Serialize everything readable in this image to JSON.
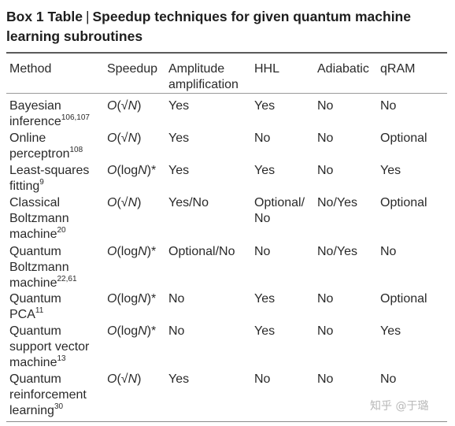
{
  "title": {
    "lead": "Box 1 Table",
    "separator": "|",
    "text": "Speedup techniques for given quantum machine learning subroutines"
  },
  "headers": {
    "method": "Method",
    "speedup": "Speedup",
    "amplitude_line1": "Amplitude",
    "amplitude_line2": "amplification",
    "hhl": "HHL",
    "adiabatic": "Adiabatic",
    "qram": "qRAM"
  },
  "rows": [
    {
      "method": [
        "Bayesian",
        "inference"
      ],
      "ref": "106,107",
      "speedup_fn": "√N",
      "speedup_star": "",
      "amplitude": "Yes",
      "hhl": [
        "Yes"
      ],
      "adiabatic": "No",
      "qram": "No"
    },
    {
      "method": [
        "Online",
        "perceptron"
      ],
      "ref": "108",
      "speedup_fn": "√N",
      "speedup_star": "",
      "amplitude": "Yes",
      "hhl": [
        "No"
      ],
      "adiabatic": "No",
      "qram": "Optional"
    },
    {
      "method": [
        "Least-squares",
        "fitting"
      ],
      "ref": "9",
      "speedup_fn": "logN",
      "speedup_star": "*",
      "amplitude": "Yes",
      "hhl": [
        "Yes"
      ],
      "adiabatic": "No",
      "qram": "Yes"
    },
    {
      "method": [
        "Classical",
        "Boltzmann",
        "machine"
      ],
      "ref": "20",
      "speedup_fn": "√N",
      "speedup_star": "",
      "amplitude": "Yes/No",
      "hhl": [
        "Optional/",
        "No"
      ],
      "adiabatic": "No/Yes",
      "qram": "Optional"
    },
    {
      "method": [
        "Quantum",
        "Boltzmann",
        "machine"
      ],
      "ref": "22,61",
      "speedup_fn": "logN",
      "speedup_star": "*",
      "amplitude": "Optional/No",
      "hhl": [
        "No"
      ],
      "adiabatic": "No/Yes",
      "qram": "No"
    },
    {
      "method": [
        "Quantum",
        "PCA"
      ],
      "ref": "11",
      "speedup_fn": "logN",
      "speedup_star": "*",
      "amplitude": "No",
      "hhl": [
        "Yes"
      ],
      "adiabatic": "No",
      "qram": "Optional"
    },
    {
      "method": [
        "Quantum",
        "support vector",
        "machine"
      ],
      "ref": "13",
      "speedup_fn": "logN",
      "speedup_star": "*",
      "amplitude": "No",
      "hhl": [
        "Yes"
      ],
      "adiabatic": "No",
      "qram": "Yes"
    },
    {
      "method": [
        "Quantum",
        "reinforcement",
        "learning"
      ],
      "ref": "30",
      "speedup_fn": "√N",
      "speedup_star": "",
      "amplitude": "Yes",
      "hhl": [
        "No"
      ],
      "adiabatic": "No",
      "qram": "No"
    }
  ],
  "watermark": "知乎 @于璐"
}
